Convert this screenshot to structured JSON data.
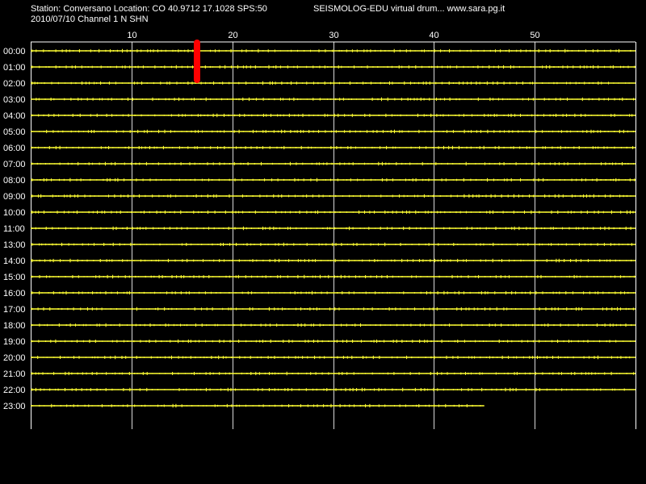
{
  "header": {
    "station_line": "Station: Conversano Location: CO 40.9712 17.1028 SPS:50",
    "date_line": "2010/07/10  Channel 1 N SHN",
    "app_line": "SEISMOLOG-EDU virtual drum... www.sara.pg.it"
  },
  "colors": {
    "background": "#000000",
    "trace": "#ffff33",
    "event": "#ff0000",
    "grid": "#ffffff"
  },
  "chart_data": {
    "type": "line",
    "title": "",
    "xlabel": "",
    "ylabel": "",
    "xlim": [
      0,
      60
    ],
    "x_ticks": [
      10,
      20,
      30,
      40,
      50
    ],
    "x_tick_labels": [
      "10",
      "20",
      "30",
      "40",
      "50"
    ],
    "grid": true,
    "rows": [
      {
        "label": "00:00",
        "end_minute": 60
      },
      {
        "label": "01:00",
        "end_minute": 60
      },
      {
        "label": "02:00",
        "end_minute": 60
      },
      {
        "label": "03:00",
        "end_minute": 60
      },
      {
        "label": "04:00",
        "end_minute": 60
      },
      {
        "label": "05:00",
        "end_minute": 60
      },
      {
        "label": "06:00",
        "end_minute": 60
      },
      {
        "label": "07:00",
        "end_minute": 60
      },
      {
        "label": "08:00",
        "end_minute": 60
      },
      {
        "label": "09:00",
        "end_minute": 60
      },
      {
        "label": "10:00",
        "end_minute": 60
      },
      {
        "label": "11:00",
        "end_minute": 60
      },
      {
        "label": "13:00",
        "end_minute": 60
      },
      {
        "label": "14:00",
        "end_minute": 60
      },
      {
        "label": "15:00",
        "end_minute": 60
      },
      {
        "label": "16:00",
        "end_minute": 60
      },
      {
        "label": "17:00",
        "end_minute": 60
      },
      {
        "label": "18:00",
        "end_minute": 60
      },
      {
        "label": "19:00",
        "end_minute": 60
      },
      {
        "label": "20:00",
        "end_minute": 60
      },
      {
        "label": "21:00",
        "end_minute": 60
      },
      {
        "label": "22:00",
        "end_minute": 60
      },
      {
        "label": "23:00",
        "end_minute": 45
      }
    ],
    "events": [
      {
        "row_start": "00:00",
        "row_end": "01:00",
        "minute": 16.5
      }
    ]
  }
}
